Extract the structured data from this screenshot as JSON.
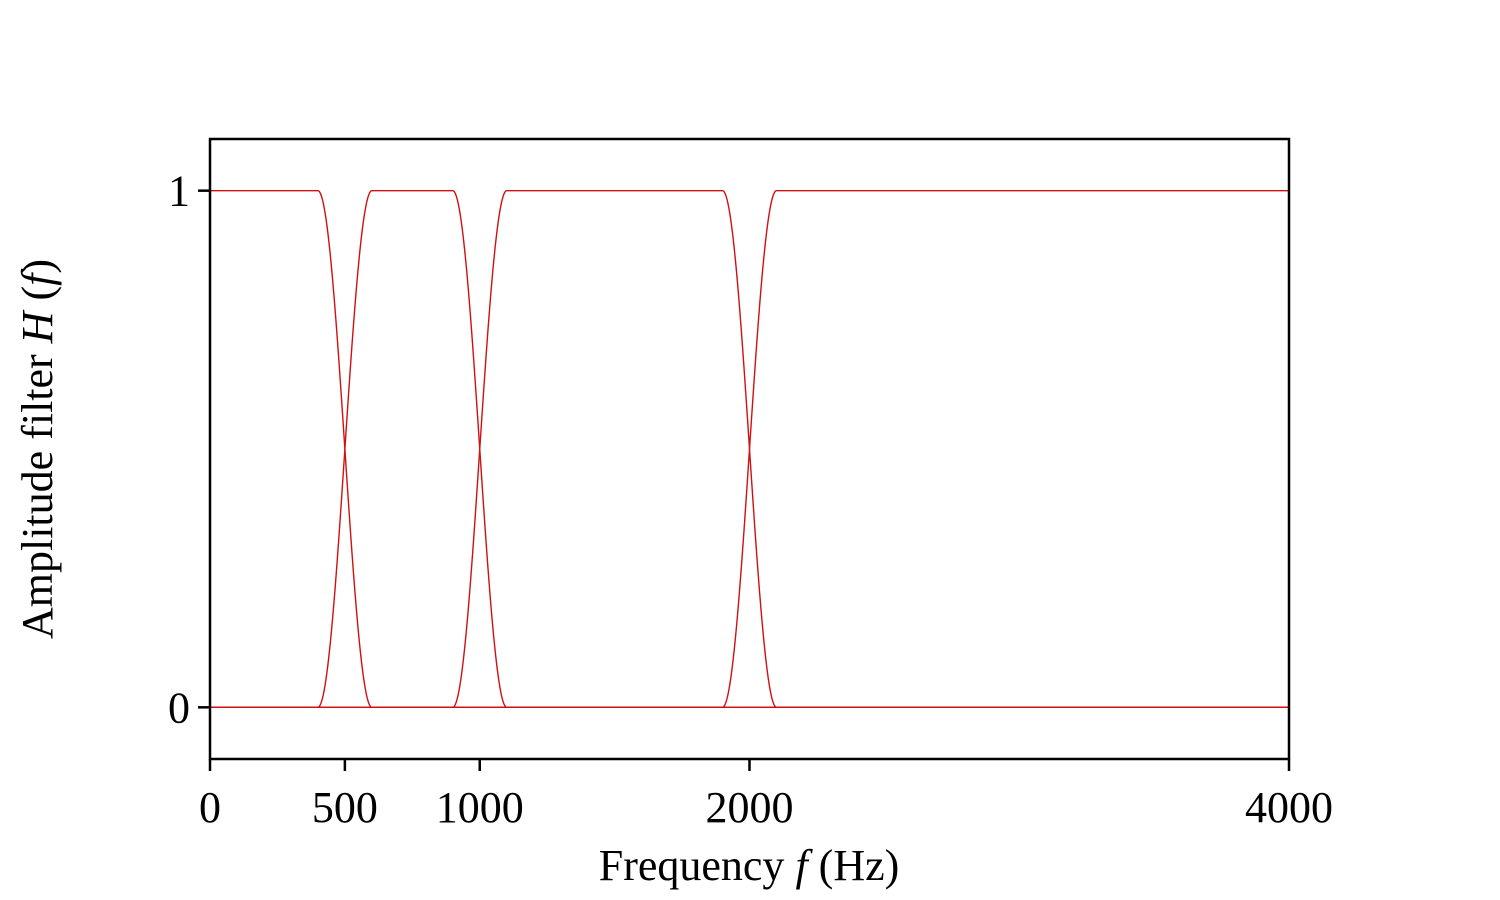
{
  "chart_data": {
    "type": "line",
    "xlabel": {
      "prefix": "Frequency ",
      "var": "f",
      "suffix": " (Hz)"
    },
    "ylabel": {
      "prefix": "Amplitude filter ",
      "var": "H",
      "mid": " (",
      "arg": "f",
      "suffix": ")"
    },
    "xlim": [
      0,
      4000
    ],
    "ylim": [
      -0.1,
      1.1
    ],
    "x_ticks": [
      0,
      500,
      1000,
      2000,
      4000
    ],
    "x_tick_labels": [
      "0",
      "500",
      "1000",
      "2000",
      "4000"
    ],
    "y_ticks": [
      0,
      1
    ],
    "y_tick_labels": [
      "0",
      "1"
    ],
    "grid": false,
    "legend": "none",
    "line_color": "#d01010",
    "crossover_frequencies": [
      500,
      1000,
      2000
    ],
    "transition_half_widths": [
      100,
      100,
      100
    ],
    "series": [
      {
        "x": [
          0,
          400,
          500,
          600,
          4000
        ],
        "y": [
          1,
          1,
          0.5,
          0,
          0
        ]
      },
      {
        "x": [
          0,
          400,
          500,
          600,
          900,
          1000,
          1100,
          4000
        ],
        "y": [
          0,
          0,
          0.5,
          1,
          1,
          0.5,
          0,
          0
        ]
      },
      {
        "x": [
          0,
          900,
          1000,
          1100,
          1900,
          2000,
          2100,
          4000
        ],
        "y": [
          0,
          0,
          0.5,
          1,
          1,
          0.5,
          0,
          0
        ]
      },
      {
        "x": [
          0,
          1900,
          2000,
          2100,
          4000
        ],
        "y": [
          0,
          0,
          0.5,
          1,
          1
        ]
      }
    ]
  }
}
